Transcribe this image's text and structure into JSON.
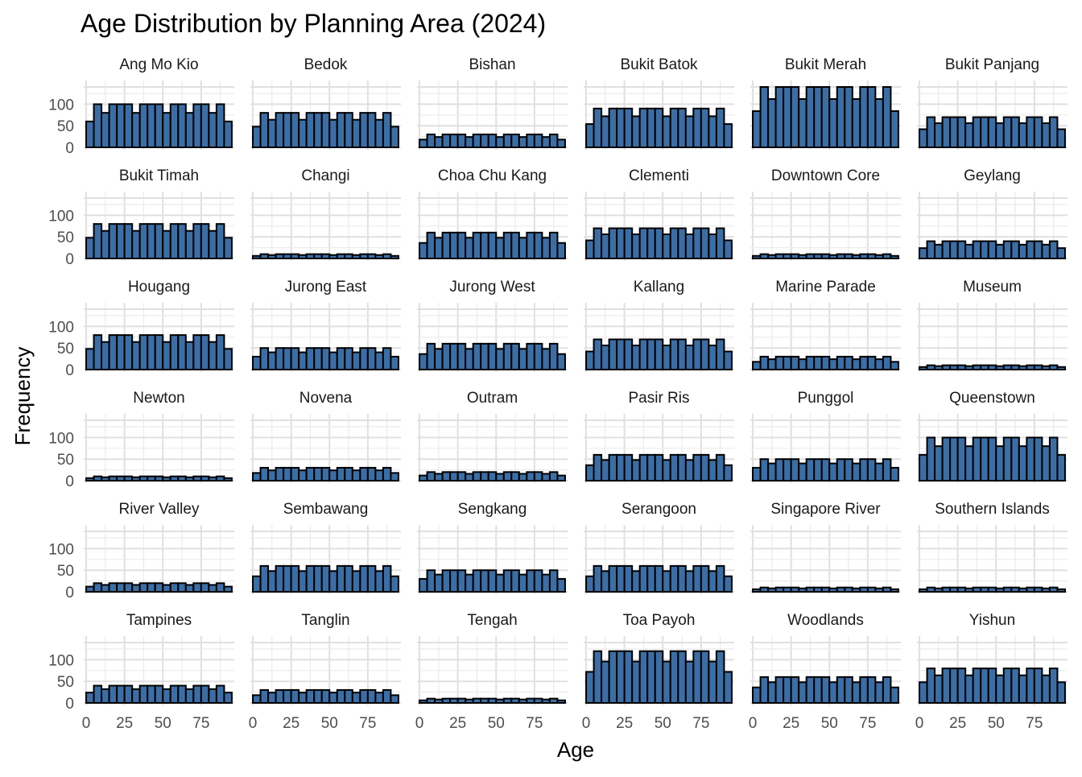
{
  "chart_data": {
    "type": "bar",
    "title": "Age Distribution by Planning Area (2024)",
    "xlabel": "Age",
    "ylabel": "Frequency",
    "xlim": [
      0,
      95
    ],
    "ylim": [
      0,
      140
    ],
    "x_ticks": [
      "0",
      "25",
      "50",
      "75"
    ],
    "y_ticks": [
      "0",
      "50",
      "100"
    ],
    "bin_width": 5,
    "bins": [
      0,
      5,
      10,
      15,
      20,
      25,
      30,
      35,
      40,
      45,
      50,
      55,
      60,
      65,
      70,
      75,
      80,
      85,
      90
    ],
    "shape": [
      0.6,
      1.0,
      0.8,
      1.0,
      1.0,
      1.0,
      0.8,
      1.0,
      1.0,
      1.0,
      0.8,
      1.0,
      1.0,
      0.8,
      1.0,
      1.0,
      0.8,
      1.0,
      0.6
    ],
    "bar_color": "#3b6ea5",
    "bar_border": "#000000",
    "grid": true,
    "panels": [
      {
        "area": "Ang Mo Kio",
        "peak": 100
      },
      {
        "area": "Bedok",
        "peak": 80
      },
      {
        "area": "Bishan",
        "peak": 30
      },
      {
        "area": "Bukit Batok",
        "peak": 90
      },
      {
        "area": "Bukit Merah",
        "peak": 140
      },
      {
        "area": "Bukit Panjang",
        "peak": 70
      },
      {
        "area": "Bukit Timah",
        "peak": 80
      },
      {
        "area": "Changi",
        "peak": 10
      },
      {
        "area": "Choa Chu Kang",
        "peak": 60
      },
      {
        "area": "Clementi",
        "peak": 70
      },
      {
        "area": "Downtown Core",
        "peak": 10
      },
      {
        "area": "Geylang",
        "peak": 40
      },
      {
        "area": "Hougang",
        "peak": 80
      },
      {
        "area": "Jurong East",
        "peak": 50
      },
      {
        "area": "Jurong West",
        "peak": 60
      },
      {
        "area": "Kallang",
        "peak": 70
      },
      {
        "area": "Marine Parade",
        "peak": 30
      },
      {
        "area": "Museum",
        "peak": 10
      },
      {
        "area": "Newton",
        "peak": 10
      },
      {
        "area": "Novena",
        "peak": 30
      },
      {
        "area": "Outram",
        "peak": 20
      },
      {
        "area": "Pasir Ris",
        "peak": 60
      },
      {
        "area": "Punggol",
        "peak": 50
      },
      {
        "area": "Queenstown",
        "peak": 100
      },
      {
        "area": "River Valley",
        "peak": 20
      },
      {
        "area": "Sembawang",
        "peak": 60
      },
      {
        "area": "Sengkang",
        "peak": 50
      },
      {
        "area": "Serangoon",
        "peak": 60
      },
      {
        "area": "Singapore River",
        "peak": 10
      },
      {
        "area": "Southern Islands",
        "peak": 10
      },
      {
        "area": "Tampines",
        "peak": 40
      },
      {
        "area": "Tanglin",
        "peak": 30
      },
      {
        "area": "Tengah",
        "peak": 10
      },
      {
        "area": "Toa Payoh",
        "peak": 120
      },
      {
        "area": "Woodlands",
        "peak": 60
      },
      {
        "area": "Yishun",
        "peak": 80
      }
    ]
  }
}
